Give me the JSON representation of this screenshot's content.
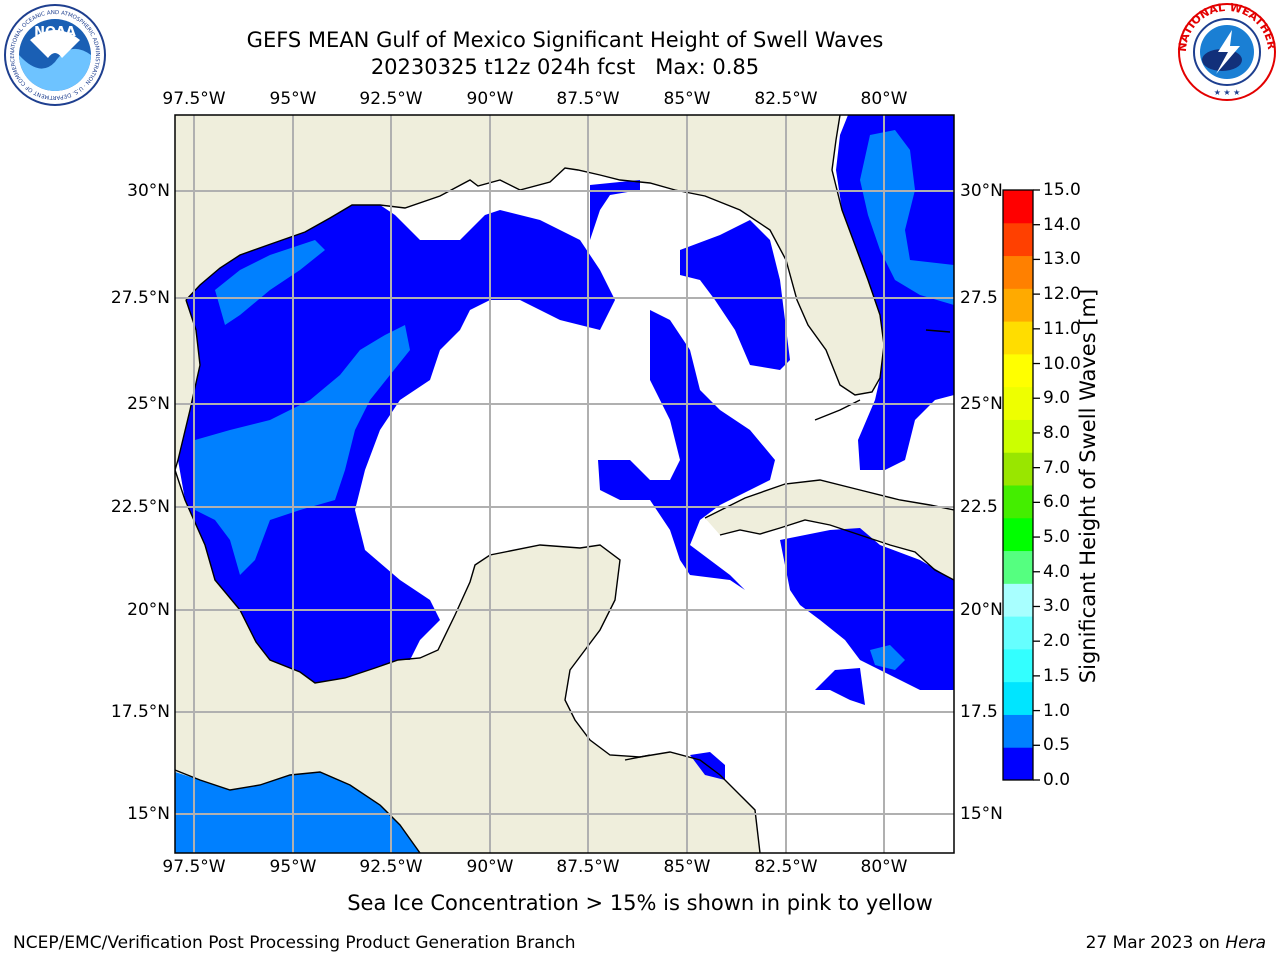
{
  "header": {
    "title_line1": "GEFS MEAN Gulf of Mexico Significant Height of Swell Waves",
    "title_line2": "20230325 t12z 024h fcst   Max: 0.85"
  },
  "logos": {
    "left": {
      "name": "noaa-logo",
      "text": "NOAA",
      "ring_text": "NATIONAL OCEANIC AND ATMOSPHERIC ADMINISTRATION · U.S. DEPARTMENT OF COMMERCE"
    },
    "right": {
      "name": "nws-logo",
      "ring_text": "NATIONAL WEATHER SERVICE"
    }
  },
  "map": {
    "lon_ticks": [
      "97.5°W",
      "95°W",
      "92.5°W",
      "90°W",
      "87.5°W",
      "85°W",
      "82.5°W",
      "80°W"
    ],
    "lat_ticks_left": [
      "30°N",
      "27.5°N",
      "25°N",
      "22.5°N",
      "20°N",
      "17.5°N",
      "15°N"
    ],
    "lat_ticks_right": [
      "30°N",
      "27.5",
      "25°N",
      "22.5",
      "20°N",
      "17.5",
      "15°N"
    ],
    "extent": {
      "lon_min": -98,
      "lon_max": -78.2,
      "lat_min": 14,
      "lat_max": 31.8
    },
    "colors": {
      "land": "#efeedc",
      "ocean_low": "#0000ff",
      "ocean_mid": "#0080ff",
      "grid": "#b0b0b0"
    }
  },
  "colorbar": {
    "label": "Significant Height of Swell Waves [m]",
    "ticks": [
      "15.0",
      "14.0",
      "13.0",
      "12.0",
      "11.0",
      "10.0",
      "9.0",
      "8.0",
      "7.0",
      "6.0",
      "5.0",
      "4.0",
      "3.0",
      "2.0",
      "1.5",
      "1.0",
      "0.5",
      "0.0"
    ],
    "bands": [
      "#0000ff",
      "#0080ff",
      "#00e5ff",
      "#33ffff",
      "#66ffff",
      "#a8ffff",
      "#55ff80",
      "#00ff00",
      "#44ee00",
      "#99e600",
      "#ccff00",
      "#eeff00",
      "#ffff00",
      "#ffdd00",
      "#ffaa00",
      "#ff8000",
      "#ff4000",
      "#ff0000"
    ]
  },
  "footer": {
    "note": "Sea Ice Concentration > 15% is shown in pink to yellow",
    "credit": "NCEP/EMC/Verification Post Processing Product Generation Branch",
    "date": "27 Mar 2023 on ",
    "host": "Hera"
  }
}
